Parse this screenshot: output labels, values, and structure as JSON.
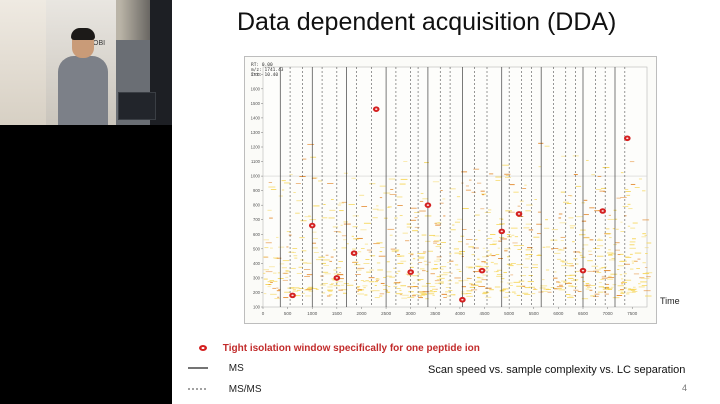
{
  "slide": {
    "title": "Data dependent acquisition (DDA)",
    "time_label": "Time",
    "page_number": "4",
    "bottom_note": "Scan speed vs. sample complexity vs. LC separation"
  },
  "video": {
    "wall_sign": "NOBI"
  },
  "legend": {
    "precursor_label": "Tight isolation window specifically for one peptide ion",
    "ms_label": "MS",
    "msms_label": "MS/MS"
  },
  "plot_readout": {
    "line1": "RT: 0.00",
    "line2": "m/z: 1741.43",
    "line3": "Int: 10.40"
  },
  "colors": {
    "precursor": "#d42020",
    "feature_low": "#f5d24a",
    "feature_high": "#e07a12"
  },
  "chart_data": {
    "type": "scatter",
    "title": "",
    "xlabel": "",
    "ylabel": "",
    "x_tick_labels": [
      "0",
      "500",
      "1000",
      "1500",
      "2000",
      "2500",
      "3000",
      "3500",
      "4000",
      "4500",
      "5000",
      "5500",
      "6000",
      "6500",
      "7000",
      "7500"
    ],
    "y_tick_labels": [
      "100",
      "200",
      "300",
      "400",
      "500",
      "600",
      "700",
      "800",
      "900",
      "1000",
      "1100",
      "1200",
      "1300",
      "1400",
      "1500",
      "1600",
      "1700"
    ],
    "xlim": [
      0,
      7800
    ],
    "ylim": [
      100,
      1750
    ],
    "selected_precursors": [
      {
        "x": 600,
        "y": 180
      },
      {
        "x": 1000,
        "y": 660
      },
      {
        "x": 1500,
        "y": 300
      },
      {
        "x": 1850,
        "y": 470
      },
      {
        "x": 2300,
        "y": 1460
      },
      {
        "x": 3000,
        "y": 340
      },
      {
        "x": 3350,
        "y": 800
      },
      {
        "x": 4050,
        "y": 150
      },
      {
        "x": 4450,
        "y": 350
      },
      {
        "x": 4850,
        "y": 620
      },
      {
        "x": 5200,
        "y": 740
      },
      {
        "x": 6500,
        "y": 350
      },
      {
        "x": 6900,
        "y": 760
      },
      {
        "x": 7400,
        "y": 1260
      }
    ],
    "ms_scan_times": [
      350,
      1000,
      1700,
      2500,
      3350,
      4050,
      4850,
      5650,
      6500,
      7150
    ],
    "msms_scan_times": [
      550,
      800,
      1200,
      1500,
      1900,
      2200,
      2700,
      3000,
      3150,
      3600,
      3800,
      4300,
      4550,
      5000,
      5250,
      5450,
      5900,
      6150,
      6350,
      6750,
      6950,
      7350
    ]
  }
}
